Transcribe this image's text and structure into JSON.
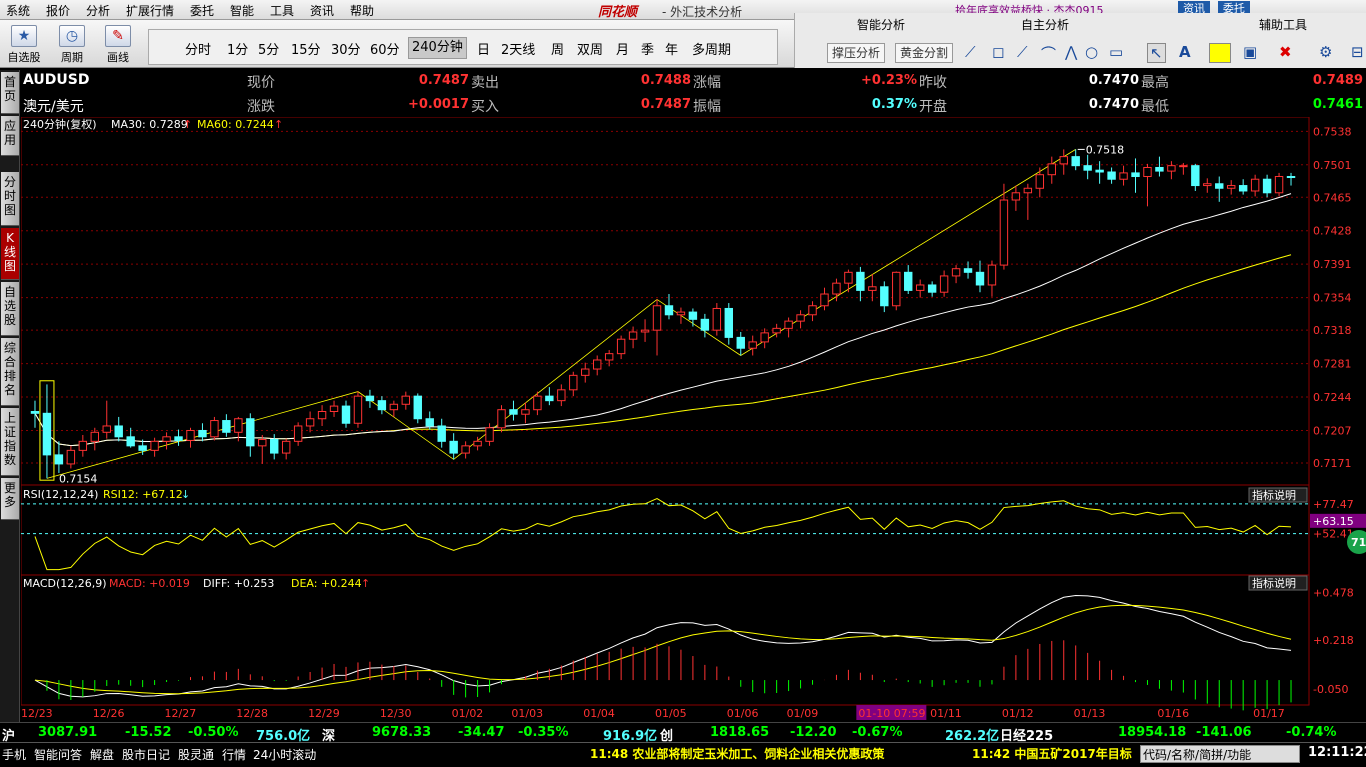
{
  "menu": [
    "系统",
    "报价",
    "分析",
    "扩展行情",
    "委托",
    "智能",
    "工具",
    "资讯",
    "帮助"
  ],
  "brand": "同花顺",
  "app_title": "- 外汇技术分析",
  "notice": "拾年底享效益桥快 · 杰杰0915",
  "top_buttons": [
    "资讯",
    "委托"
  ],
  "toolbar_left": [
    {
      "label": "自选股",
      "icon": "star-icon"
    },
    {
      "label": "周期",
      "icon": "clock-icon"
    },
    {
      "label": "画线",
      "icon": "pen-icon"
    }
  ],
  "periods": [
    "分时",
    "1分",
    "5分",
    "15分",
    "30分",
    "60分",
    "240分钟",
    "日",
    "2天线",
    "周",
    "双周",
    "月",
    "季",
    "年",
    "多周期"
  ],
  "selected_period": "240分钟",
  "right_panel": {
    "smart": "智能分析",
    "self": "自主分析",
    "aux": "辅助工具",
    "btn1": "撑压分析",
    "btn2": "黄金分割",
    "tool_text_icon": "A"
  },
  "left_nav": [
    "首页",
    "应用",
    "分时图",
    "K线图",
    "自选股",
    "综合排名",
    "上证指数",
    "更多"
  ],
  "quote": {
    "symbol": "AUDUSD",
    "name": "澳元/美元",
    "labels": [
      "现价",
      "涨跌",
      "卖出",
      "买入",
      "涨幅",
      "振幅",
      "昨收",
      "开盘",
      "最高",
      "最低"
    ],
    "price": "0.7487",
    "change": "+0.0017",
    "ask": "0.7488",
    "bid": "0.7487",
    "pct": "+0.23%",
    "amplitude": "0.37%",
    "prev_close": "0.7470",
    "open": "0.7470",
    "high": "0.7489",
    "low": "0.7461"
  },
  "main_legend": {
    "period": "240分钟(复权)",
    "ma30": "MA30: 0.7289",
    "ma60": "MA60: 0.7244",
    "up": "↑"
  },
  "rsi_legend": {
    "name": "RSI(12,12,24)",
    "val": "RSI12: +67.12",
    "arrow": "↓"
  },
  "macd_legend": {
    "name": "MACD(12,26,9)",
    "macd": "MACD: +0.019",
    "diff": "DIFF: +0.253",
    "dea": "DEA: +0.244",
    "arrow": "↑"
  },
  "indicator_btn": "指标说明",
  "price_ticks": [
    "0.7538",
    "0.7501",
    "0.7465",
    "0.7428",
    "0.7391",
    "0.7354",
    "0.7318",
    "0.7281",
    "0.7244",
    "0.7207",
    "0.7171"
  ],
  "rsi_ticks": [
    "+77.47",
    "+63.15",
    "+52.41"
  ],
  "rsi_badge": "71",
  "macd_ticks": [
    "+0.478",
    "+0.218",
    "-0.050"
  ],
  "date_ticks": [
    "12/23",
    "12/26",
    "12/27",
    "12/28",
    "12/29",
    "12/30",
    "01/02",
    "01/03",
    "01/04",
    "01/05",
    "01/06",
    "01/09",
    "01-10 07:59",
    "01/11",
    "01/12",
    "01/13",
    "01/16",
    "01/17"
  ],
  "annot_high": "0.7518",
  "annot_low": "0.7154",
  "ticker": {
    "sh": "沪",
    "sh_val": "3087.91",
    "sh_chg": "-15.52",
    "sh_pct": "-0.50%",
    "sh_amt": "756.0亿",
    "sz": "深",
    "sz_val": "9678.33",
    "sz_chg": "-34.47",
    "sz_pct": "-0.35%",
    "sz_amt": "916.9亿",
    "cy": "创",
    "cy_val": "1818.65",
    "cy_chg": "-12.20",
    "cy_pct": "-0.67%",
    "cy_amt": "262.2亿",
    "rj": "日经225",
    "rj_val": "18954.18",
    "rj_chg": "-141.06",
    "rj_pct": "-0.74%"
  },
  "status": {
    "items": [
      "手机",
      "智能问答",
      "解盘",
      "股市日记",
      "股灵通",
      "行情",
      "24小时滚动"
    ],
    "news1": "11:48 农业部将制定玉米加工、饲料企业相关优惠政策",
    "news2": "11:42 中国五矿2017年目标",
    "search_placeholder": "代码/名称/简拼/功能",
    "clock": "12:11:22"
  },
  "colors": {
    "up": "#ff3232",
    "down": "#54ffff",
    "ma30": "#ffffff",
    "ma60": "#ffff00",
    "grid": "#8b0000"
  },
  "chart_data": {
    "type": "candlestick",
    "symbol": "AUDUSD",
    "period": "240分钟",
    "ylim": [
      0.715,
      0.7545
    ],
    "candles": [
      [
        0.7228,
        0.724,
        0.721,
        0.7226
      ],
      [
        0.7226,
        0.7258,
        0.7154,
        0.718
      ],
      [
        0.718,
        0.7195,
        0.716,
        0.717
      ],
      [
        0.717,
        0.719,
        0.7165,
        0.7185
      ],
      [
        0.7185,
        0.7202,
        0.7178,
        0.7195
      ],
      [
        0.7195,
        0.721,
        0.7185,
        0.7205
      ],
      [
        0.7205,
        0.724,
        0.7198,
        0.7212
      ],
      [
        0.7212,
        0.7222,
        0.7195,
        0.72
      ],
      [
        0.72,
        0.721,
        0.7188,
        0.719
      ],
      [
        0.719,
        0.7197,
        0.718,
        0.7185
      ],
      [
        0.7185,
        0.7199,
        0.7178,
        0.7195
      ],
      [
        0.7195,
        0.7205,
        0.7186,
        0.72
      ],
      [
        0.72,
        0.7208,
        0.719,
        0.7196
      ],
      [
        0.7196,
        0.721,
        0.7188,
        0.7207
      ],
      [
        0.7207,
        0.7215,
        0.7195,
        0.72
      ],
      [
        0.72,
        0.7222,
        0.7196,
        0.7218
      ],
      [
        0.7218,
        0.7225,
        0.72,
        0.7205
      ],
      [
        0.7205,
        0.7222,
        0.7195,
        0.722
      ],
      [
        0.722,
        0.7226,
        0.7178,
        0.719
      ],
      [
        0.719,
        0.7202,
        0.717,
        0.7197
      ],
      [
        0.7197,
        0.7203,
        0.7175,
        0.7182
      ],
      [
        0.7182,
        0.7198,
        0.7175,
        0.7195
      ],
      [
        0.7195,
        0.7216,
        0.719,
        0.7212
      ],
      [
        0.7212,
        0.7228,
        0.7205,
        0.722
      ],
      [
        0.722,
        0.7235,
        0.7212,
        0.7228
      ],
      [
        0.7228,
        0.724,
        0.7222,
        0.7234
      ],
      [
        0.7234,
        0.724,
        0.721,
        0.7215
      ],
      [
        0.7215,
        0.725,
        0.721,
        0.7245
      ],
      [
        0.7245,
        0.7252,
        0.7232,
        0.724
      ],
      [
        0.724,
        0.7245,
        0.7225,
        0.723
      ],
      [
        0.723,
        0.724,
        0.7222,
        0.7236
      ],
      [
        0.7236,
        0.725,
        0.723,
        0.7245
      ],
      [
        0.7245,
        0.7248,
        0.7215,
        0.722
      ],
      [
        0.722,
        0.7228,
        0.7208,
        0.7212
      ],
      [
        0.7212,
        0.722,
        0.7188,
        0.7195
      ],
      [
        0.7195,
        0.7204,
        0.7175,
        0.7182
      ],
      [
        0.7182,
        0.7195,
        0.7176,
        0.719
      ],
      [
        0.719,
        0.72,
        0.7185,
        0.7195
      ],
      [
        0.7195,
        0.7215,
        0.719,
        0.721
      ],
      [
        0.721,
        0.7235,
        0.7205,
        0.723
      ],
      [
        0.723,
        0.724,
        0.7218,
        0.7225
      ],
      [
        0.7225,
        0.7238,
        0.7215,
        0.723
      ],
      [
        0.723,
        0.725,
        0.7224,
        0.7245
      ],
      [
        0.7245,
        0.7255,
        0.7235,
        0.724
      ],
      [
        0.724,
        0.7258,
        0.7234,
        0.7252
      ],
      [
        0.7252,
        0.7272,
        0.7245,
        0.7268
      ],
      [
        0.7268,
        0.7282,
        0.726,
        0.7275
      ],
      [
        0.7275,
        0.729,
        0.7268,
        0.7285
      ],
      [
        0.7285,
        0.7296,
        0.7278,
        0.7292
      ],
      [
        0.7292,
        0.7312,
        0.7286,
        0.7308
      ],
      [
        0.7308,
        0.7322,
        0.7298,
        0.7316
      ],
      [
        0.7316,
        0.733,
        0.7305,
        0.7318
      ],
      [
        0.7318,
        0.7352,
        0.729,
        0.7345
      ],
      [
        0.7345,
        0.7358,
        0.733,
        0.7335
      ],
      [
        0.7335,
        0.7343,
        0.7325,
        0.7338
      ],
      [
        0.7338,
        0.7342,
        0.7322,
        0.733
      ],
      [
        0.733,
        0.7336,
        0.731,
        0.7318
      ],
      [
        0.7318,
        0.7348,
        0.7312,
        0.7342
      ],
      [
        0.7342,
        0.7348,
        0.7302,
        0.731
      ],
      [
        0.731,
        0.7316,
        0.729,
        0.7298
      ],
      [
        0.7298,
        0.7312,
        0.729,
        0.7305
      ],
      [
        0.7305,
        0.732,
        0.7298,
        0.7315
      ],
      [
        0.7315,
        0.7325,
        0.731,
        0.732
      ],
      [
        0.732,
        0.7332,
        0.731,
        0.7328
      ],
      [
        0.7328,
        0.734,
        0.732,
        0.7335
      ],
      [
        0.7335,
        0.735,
        0.7328,
        0.7345
      ],
      [
        0.7345,
        0.7365,
        0.734,
        0.7358
      ],
      [
        0.7358,
        0.7375,
        0.735,
        0.737
      ],
      [
        0.737,
        0.7385,
        0.736,
        0.7382
      ],
      [
        0.7382,
        0.7388,
        0.735,
        0.7362
      ],
      [
        0.7362,
        0.738,
        0.735,
        0.7366
      ],
      [
        0.7366,
        0.7372,
        0.7338,
        0.7345
      ],
      [
        0.7345,
        0.7383,
        0.734,
        0.7382
      ],
      [
        0.7382,
        0.739,
        0.7358,
        0.7362
      ],
      [
        0.7362,
        0.7374,
        0.7354,
        0.7368
      ],
      [
        0.7368,
        0.7372,
        0.7355,
        0.736
      ],
      [
        0.736,
        0.7384,
        0.7355,
        0.7378
      ],
      [
        0.7378,
        0.739,
        0.737,
        0.7386
      ],
      [
        0.7386,
        0.7394,
        0.7375,
        0.7382
      ],
      [
        0.7382,
        0.7395,
        0.736,
        0.7368
      ],
      [
        0.7368,
        0.7395,
        0.7355,
        0.739
      ],
      [
        0.739,
        0.748,
        0.7385,
        0.7462
      ],
      [
        0.7462,
        0.7478,
        0.745,
        0.747
      ],
      [
        0.747,
        0.748,
        0.744,
        0.7475
      ],
      [
        0.7475,
        0.7498,
        0.7465,
        0.749
      ],
      [
        0.749,
        0.751,
        0.748,
        0.7502
      ],
      [
        0.7502,
        0.7518,
        0.749,
        0.751
      ],
      [
        0.751,
        0.7518,
        0.7495,
        0.75
      ],
      [
        0.75,
        0.7512,
        0.7485,
        0.7495
      ],
      [
        0.7495,
        0.7505,
        0.748,
        0.7493
      ],
      [
        0.7493,
        0.7498,
        0.748,
        0.7485
      ],
      [
        0.7485,
        0.75,
        0.7478,
        0.7492
      ],
      [
        0.7492,
        0.7508,
        0.747,
        0.7488
      ],
      [
        0.7488,
        0.7502,
        0.7455,
        0.7498
      ],
      [
        0.7498,
        0.751,
        0.7488,
        0.7494
      ],
      [
        0.7494,
        0.7505,
        0.7485,
        0.75
      ],
      [
        0.75,
        0.7503,
        0.749,
        0.75
      ],
      [
        0.75,
        0.7502,
        0.7472,
        0.7478
      ],
      [
        0.7478,
        0.7486,
        0.747,
        0.748
      ],
      [
        0.748,
        0.7488,
        0.746,
        0.7475
      ],
      [
        0.7475,
        0.7484,
        0.7468,
        0.7478
      ],
      [
        0.7478,
        0.7485,
        0.7468,
        0.7472
      ],
      [
        0.7472,
        0.749,
        0.7466,
        0.7485
      ],
      [
        0.7485,
        0.749,
        0.7465,
        0.747
      ],
      [
        0.747,
        0.7492,
        0.7466,
        0.7488
      ],
      [
        0.7488,
        0.7492,
        0.7478,
        0.7487
      ]
    ]
  }
}
